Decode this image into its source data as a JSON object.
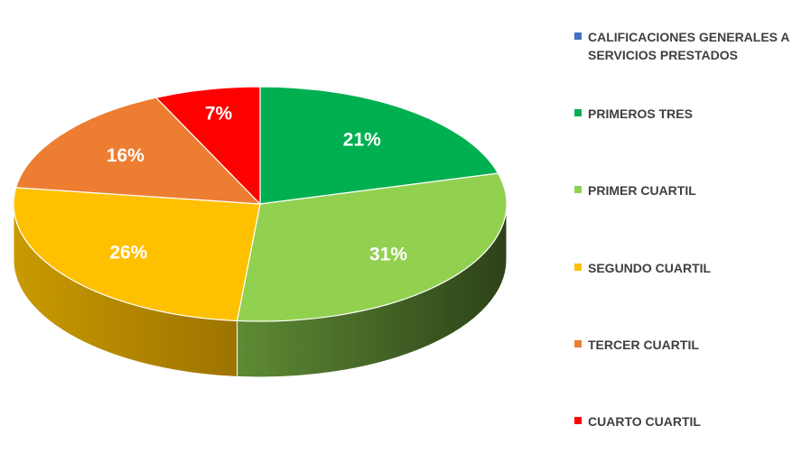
{
  "chart_data": {
    "type": "pie",
    "title": "",
    "legend_position": "right",
    "legend": [
      {
        "label": "CALIFICACIONES GENERALES A SERVICIOS PRESTADOS",
        "color": "#4472c4"
      },
      {
        "label": "PRIMEROS TRES",
        "color": "#00b050"
      },
      {
        "label": "PRIMER CUARTIL",
        "color": "#92d050"
      },
      {
        "label": "SEGUNDO CUARTIL",
        "color": "#ffc000"
      },
      {
        "label": "TERCER CUARTIL",
        "color": "#ed7d31"
      },
      {
        "label": "CUARTO CUARTIL",
        "color": "#ff0000"
      }
    ],
    "slices": [
      {
        "label": "PRIMEROS TRES",
        "value": 21,
        "display": "21%",
        "color": "#00b050",
        "side_color": "#00652e"
      },
      {
        "label": "PRIMER CUARTIL",
        "value": 31,
        "display": "31%",
        "color": "#92d050",
        "side_color": "#3d5a1f"
      },
      {
        "label": "SEGUNDO CUARTIL",
        "value": 26,
        "display": "26%",
        "color": "#ffc000",
        "side_color": "#b07f00"
      },
      {
        "label": "TERCER CUARTIL",
        "value": 16,
        "display": "16%",
        "color": "#ed7d31",
        "side_color": "#8e4410"
      },
      {
        "label": "CUARTO CUARTIL",
        "value": 7,
        "display": "7%",
        "color": "#ff0000",
        "side_color": "#8b0000"
      }
    ]
  }
}
